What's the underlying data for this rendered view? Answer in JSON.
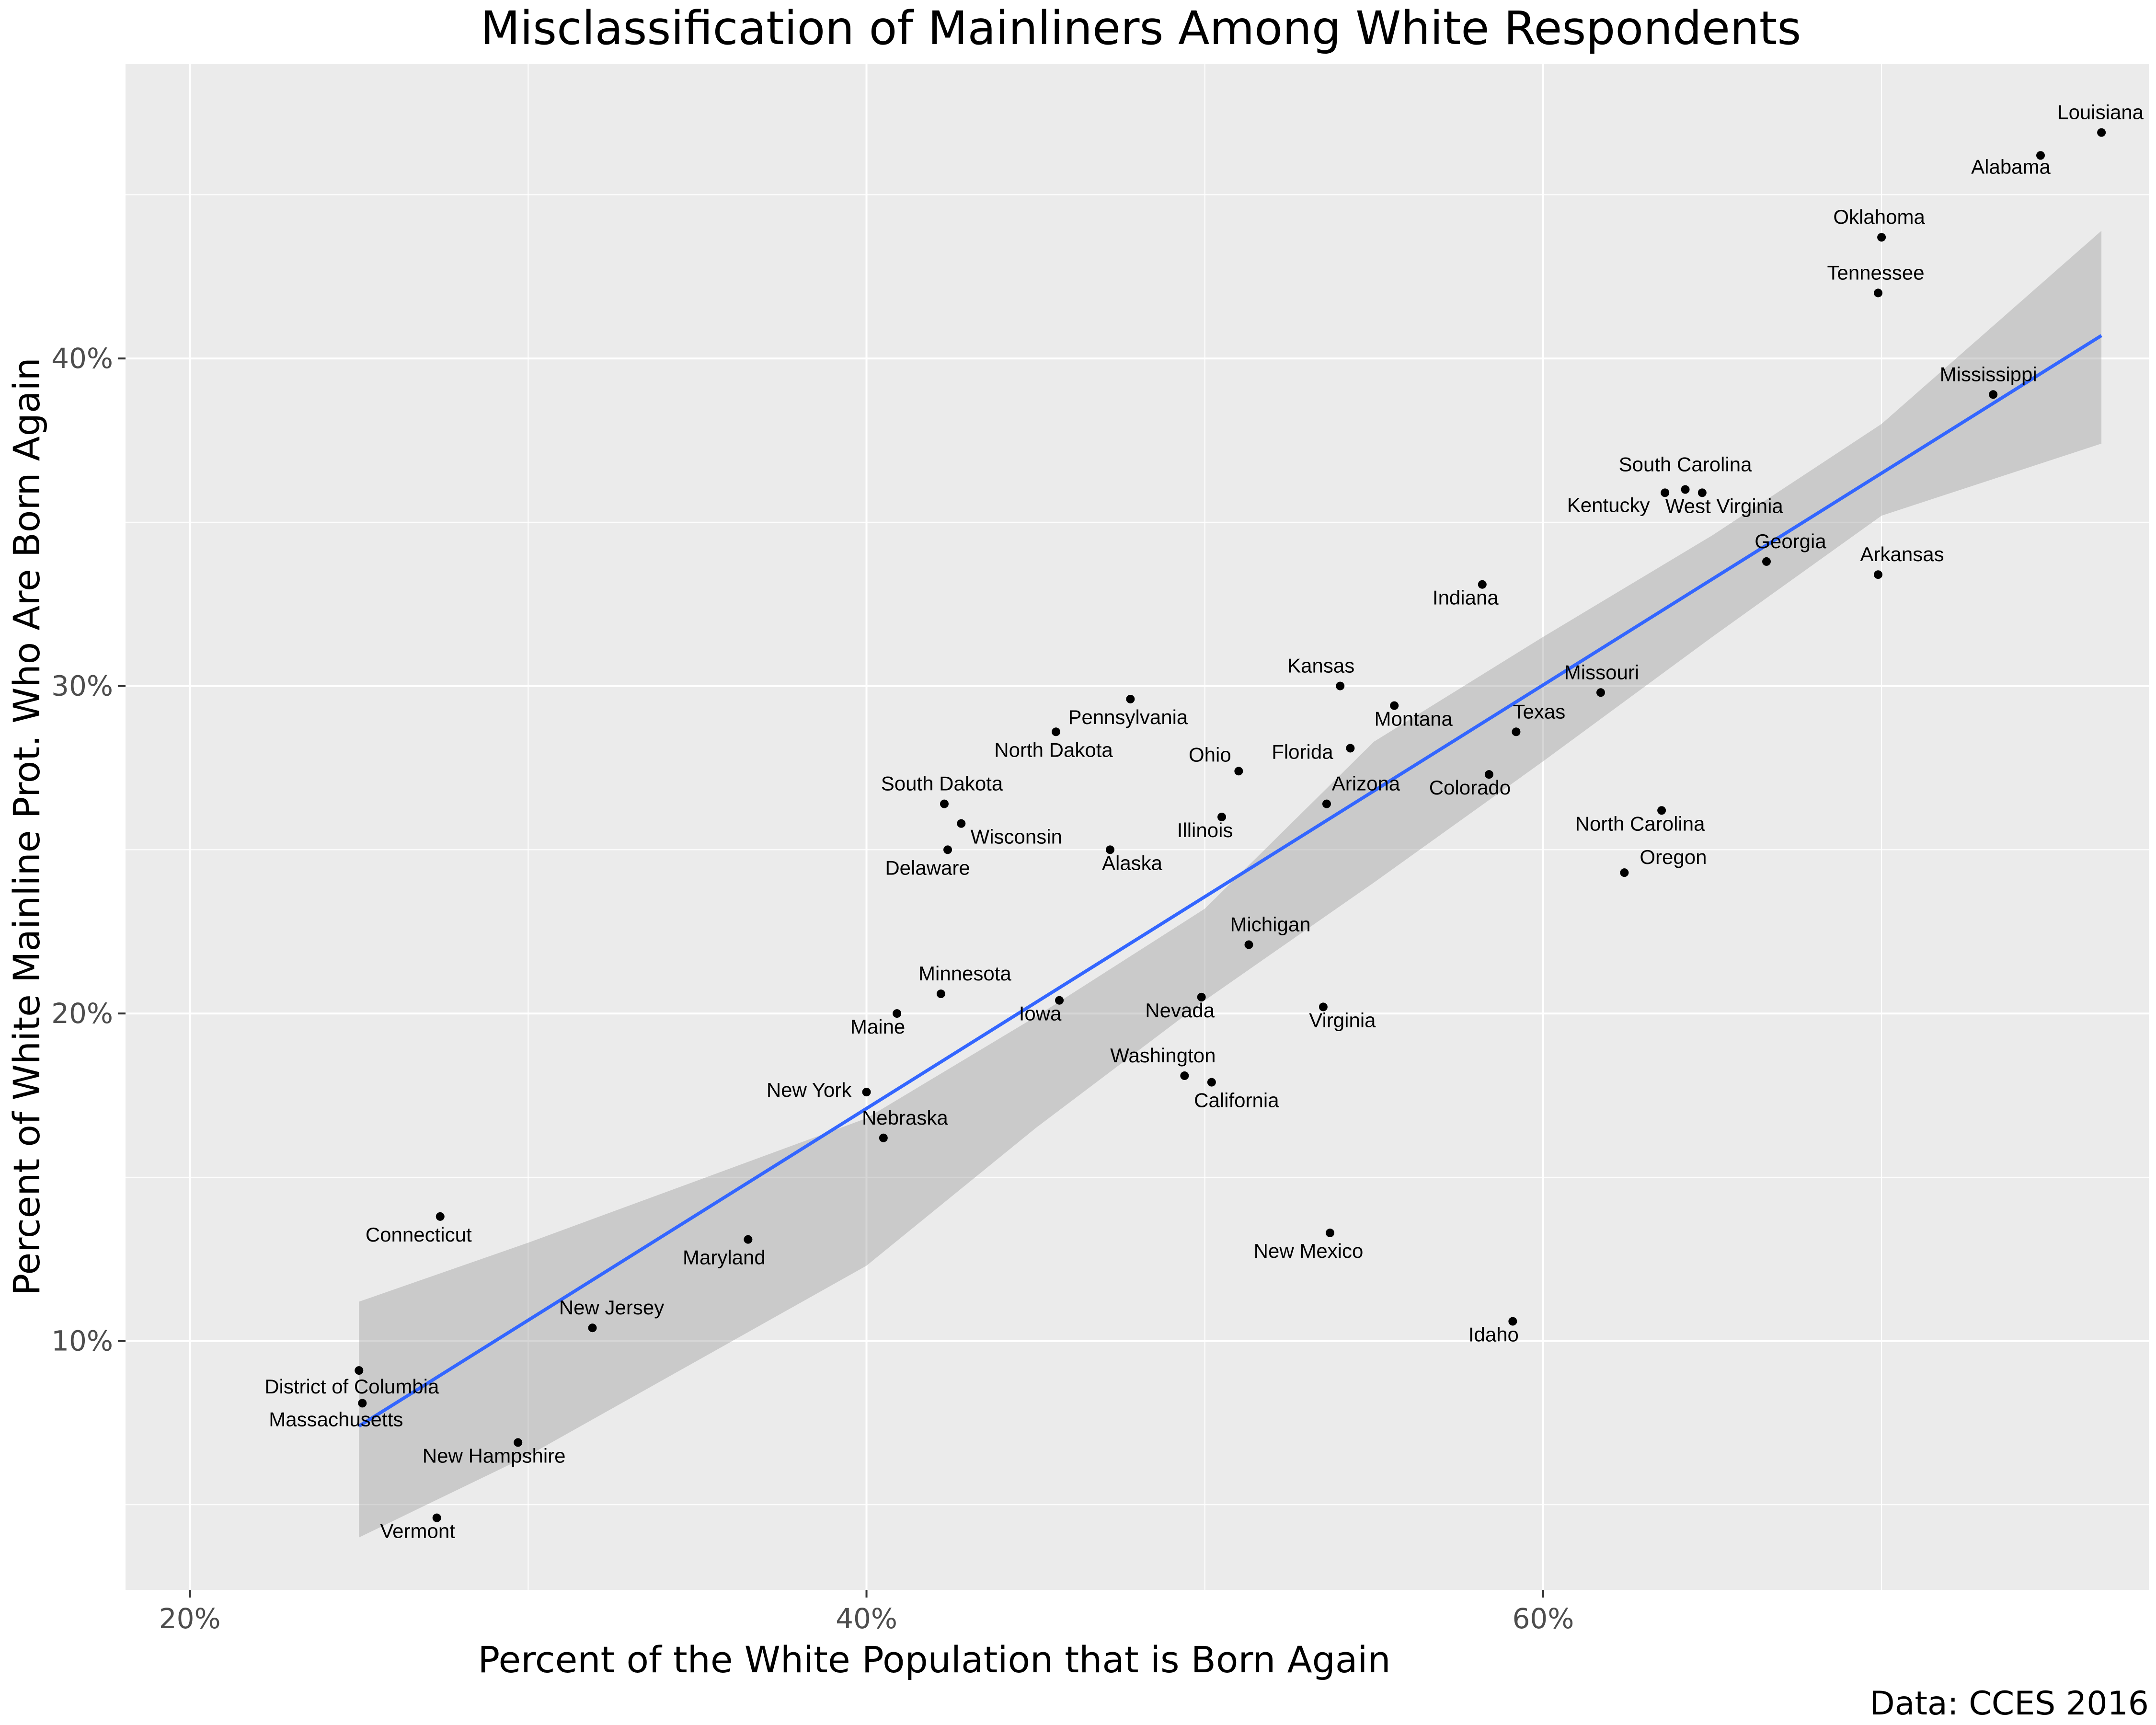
{
  "chart_data": {
    "type": "scatter",
    "title": "Misclassification of Mainliners Among White Respondents",
    "xlabel": "Percent of the White Population that is Born Again",
    "ylabel": "Percent of White Mainline Prot. Who Are Born Again",
    "caption": "Data: CCES 2016",
    "xlim": [
      18.1,
      77.9
    ],
    "ylim": [
      2.4,
      49.0
    ],
    "x_ticks": [
      {
        "value": 20,
        "label": "20%"
      },
      {
        "value": 40,
        "label": "40%"
      },
      {
        "value": 60,
        "label": "60%"
      }
    ],
    "y_ticks": [
      {
        "value": 10,
        "label": "10%"
      },
      {
        "value": 20,
        "label": "20%"
      },
      {
        "value": 30,
        "label": "30%"
      },
      {
        "value": 40,
        "label": "40%"
      }
    ],
    "grid": true,
    "fit": {
      "method": "linear",
      "x0": 25.0,
      "y0": 7.4,
      "x1": 76.5,
      "y1": 40.7
    },
    "band": {
      "x": [
        25.0,
        30,
        35,
        40,
        45,
        50,
        55,
        60,
        65,
        70,
        76.5
      ],
      "upper": [
        11.2,
        13.0,
        14.9,
        16.8,
        19.9,
        23.2,
        28.3,
        31.5,
        34.6,
        38.0,
        43.9
      ],
      "lower": [
        4.0,
        6.5,
        9.4,
        12.3,
        16.5,
        20.4,
        24.0,
        27.7,
        31.5,
        35.2,
        37.4
      ]
    },
    "points": [
      {
        "name": "Louisiana",
        "x": 76.5,
        "y": 46.9
      },
      {
        "name": "Alabama",
        "x": 74.7,
        "y": 46.2
      },
      {
        "name": "Oklahoma",
        "x": 70.0,
        "y": 43.7
      },
      {
        "name": "Tennessee",
        "x": 69.9,
        "y": 42.0
      },
      {
        "name": "Mississippi",
        "x": 73.3,
        "y": 38.9
      },
      {
        "name": "South Carolina",
        "x": 64.2,
        "y": 36.0
      },
      {
        "name": "Kentucky",
        "x": 63.6,
        "y": 35.9
      },
      {
        "name": "West Virginia",
        "x": 64.7,
        "y": 35.9
      },
      {
        "name": "Georgia",
        "x": 66.6,
        "y": 33.8
      },
      {
        "name": "Arkansas",
        "x": 69.9,
        "y": 33.4
      },
      {
        "name": "Indiana",
        "x": 58.2,
        "y": 33.1
      },
      {
        "name": "Missouri",
        "x": 61.7,
        "y": 29.8
      },
      {
        "name": "Kansas",
        "x": 54.0,
        "y": 30.0
      },
      {
        "name": "Montana",
        "x": 55.6,
        "y": 29.4
      },
      {
        "name": "Texas",
        "x": 59.2,
        "y": 28.6
      },
      {
        "name": "Florida",
        "x": 54.3,
        "y": 28.1
      },
      {
        "name": "Colorado",
        "x": 58.4,
        "y": 27.3
      },
      {
        "name": "Arizona",
        "x": 53.6,
        "y": 26.4
      },
      {
        "name": "North Carolina",
        "x": 63.5,
        "y": 26.2
      },
      {
        "name": "Oregon",
        "x": 62.4,
        "y": 24.3
      },
      {
        "name": "Ohio",
        "x": 51.0,
        "y": 27.4
      },
      {
        "name": "Illinois",
        "x": 50.5,
        "y": 26.0
      },
      {
        "name": "Pennsylvania",
        "x": 47.8,
        "y": 29.6
      },
      {
        "name": "North Dakota",
        "x": 45.6,
        "y": 28.6
      },
      {
        "name": "South Dakota",
        "x": 42.3,
        "y": 26.4
      },
      {
        "name": "Wisconsin",
        "x": 42.8,
        "y": 25.8
      },
      {
        "name": "Delaware",
        "x": 42.4,
        "y": 25.0
      },
      {
        "name": "Alaska",
        "x": 47.2,
        "y": 25.0
      },
      {
        "name": "Michigan",
        "x": 51.3,
        "y": 22.1
      },
      {
        "name": "Minnesota",
        "x": 42.2,
        "y": 20.6
      },
      {
        "name": "Maine",
        "x": 40.9,
        "y": 20.0
      },
      {
        "name": "Iowa",
        "x": 45.7,
        "y": 20.4
      },
      {
        "name": "Nevada",
        "x": 49.9,
        "y": 20.5
      },
      {
        "name": "Virginia",
        "x": 53.5,
        "y": 20.2
      },
      {
        "name": "Washington",
        "x": 49.4,
        "y": 18.1
      },
      {
        "name": "California",
        "x": 50.2,
        "y": 17.9
      },
      {
        "name": "New York",
        "x": 40.0,
        "y": 17.6
      },
      {
        "name": "Nebraska",
        "x": 40.5,
        "y": 16.2
      },
      {
        "name": "Connecticut",
        "x": 27.4,
        "y": 13.8
      },
      {
        "name": "Maryland",
        "x": 36.5,
        "y": 13.1
      },
      {
        "name": "New Mexico",
        "x": 53.7,
        "y": 13.3
      },
      {
        "name": "Idaho",
        "x": 59.1,
        "y": 10.6
      },
      {
        "name": "New Jersey",
        "x": 31.9,
        "y": 10.4
      },
      {
        "name": "District of Columbia",
        "x": 25.0,
        "y": 9.1
      },
      {
        "name": "Massachusetts",
        "x": 25.1,
        "y": 8.1
      },
      {
        "name": "New Hampshire",
        "x": 29.7,
        "y": 6.9
      },
      {
        "name": "Vermont",
        "x": 27.3,
        "y": 4.6
      }
    ]
  }
}
